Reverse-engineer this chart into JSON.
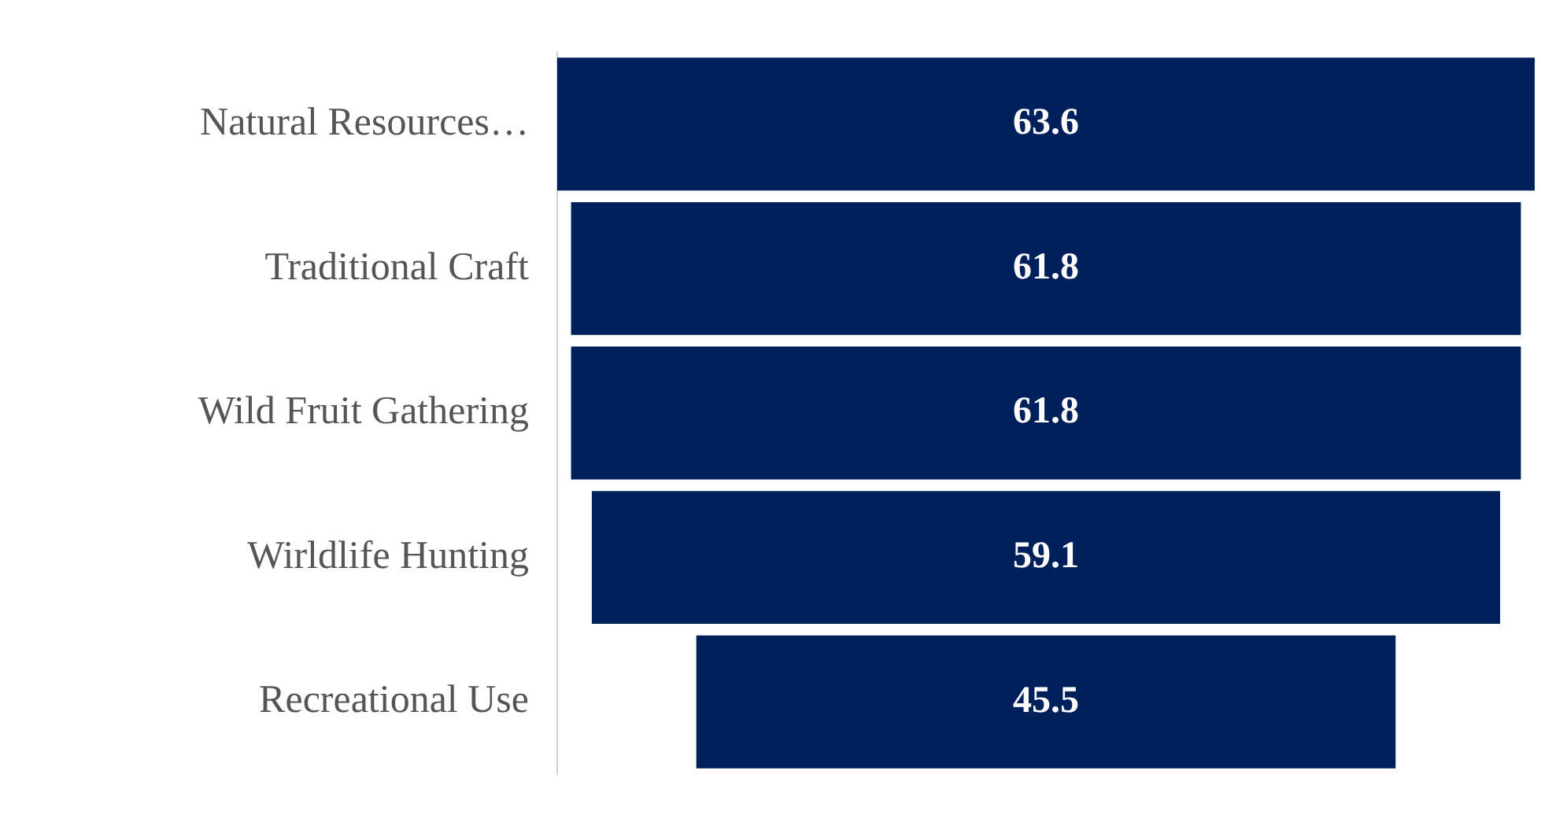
{
  "chart_data": {
    "type": "other",
    "categories": [
      "Natural Resources…",
      "Traditional Craft",
      "Wild Fruit Gathering",
      "Wirldlife Hunting",
      "Recreational Use"
    ],
    "values": [
      63.6,
      61.8,
      61.8,
      59.1,
      45.5
    ],
    "color": "#00205b",
    "data_labels": true
  }
}
